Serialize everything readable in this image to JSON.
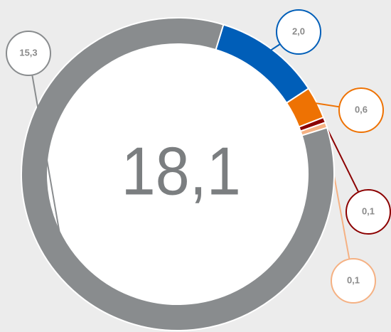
{
  "chart_data": {
    "type": "donut",
    "center_label": "18,1",
    "values": [
      2.0,
      0.6,
      0.1,
      0.1,
      15.3
    ],
    "value_labels": [
      "2,0",
      "0,6",
      "0,1",
      "0,1",
      "15,3"
    ],
    "colors": [
      "#005eb8",
      "#ee7203",
      "#8c0000",
      "#f5b183",
      "#898c8e"
    ]
  }
}
